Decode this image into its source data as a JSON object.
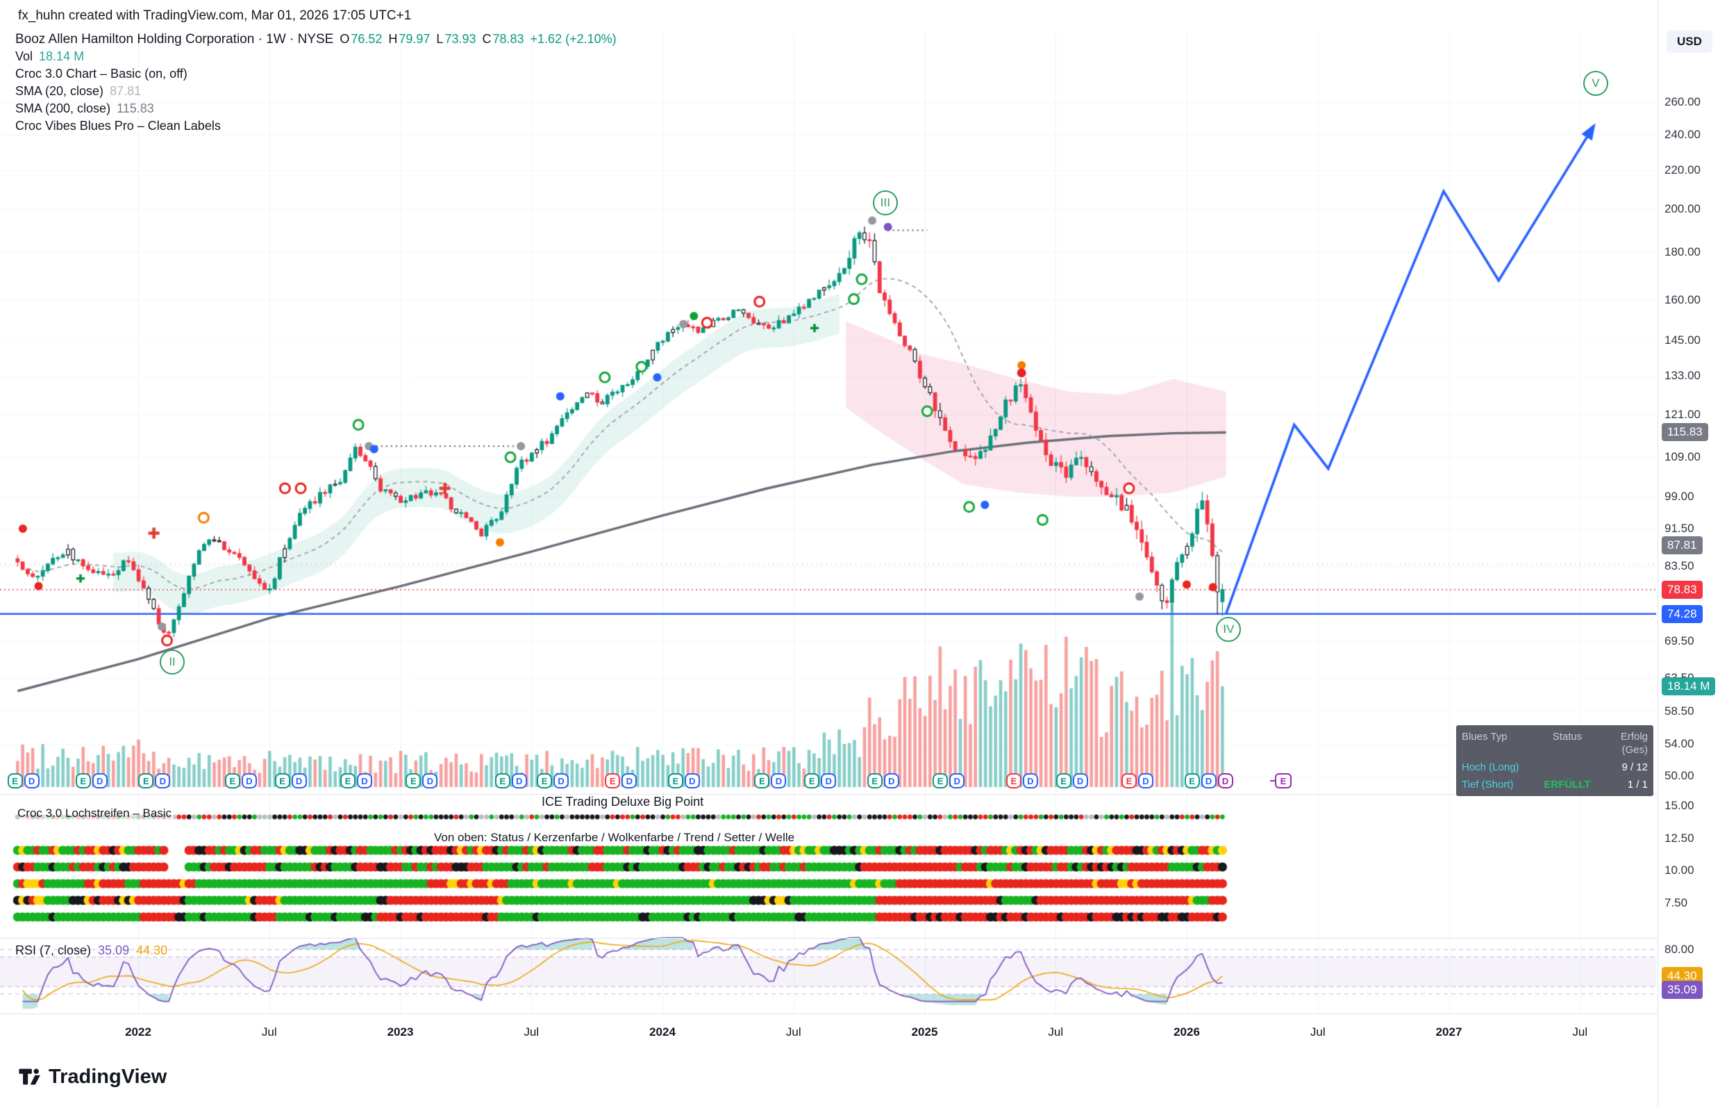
{
  "header": {
    "attribution": "fx_huhn created with TradingView.com, Mar 01, 2026 17:05 UTC+1"
  },
  "legend": {
    "title_line": "Booz Allen Hamilton Holding Corporation · 1W · NYSE",
    "ohlc": [
      {
        "label": "O",
        "value": "76.52"
      },
      {
        "label": "H",
        "value": "79.97"
      },
      {
        "label": "L",
        "value": "73.93"
      },
      {
        "label": "C",
        "value": "78.83"
      }
    ],
    "change": "+1.62 (+2.10%)",
    "vol_label": "Vol",
    "vol_value": "18.14 M",
    "indicators": [
      {
        "name": "Croc 3.0 Chart – Basic (on, off)",
        "value": ""
      },
      {
        "name": "SMA (20, close)",
        "value": "87.81"
      },
      {
        "name": "SMA (200, close)",
        "value": "115.83"
      },
      {
        "name": "Croc Vibes Blues Pro – Clean Labels",
        "value": ""
      }
    ]
  },
  "price_axis": {
    "currency": "USD",
    "ticks": [
      {
        "label": "260.00",
        "v": 260
      },
      {
        "label": "240.00",
        "v": 240
      },
      {
        "label": "220.00",
        "v": 220
      },
      {
        "label": "200.00",
        "v": 200
      },
      {
        "label": "180.00",
        "v": 180
      },
      {
        "label": "160.00",
        "v": 160
      },
      {
        "label": "145.00",
        "v": 145
      },
      {
        "label": "133.00",
        "v": 133
      },
      {
        "label": "121.00",
        "v": 121
      },
      {
        "label": "109.00",
        "v": 109
      },
      {
        "label": "99.00",
        "v": 99
      },
      {
        "label": "91.50",
        "v": 91.5
      },
      {
        "label": "83.50",
        "v": 83.5
      },
      {
        "label": "69.50",
        "v": 69.5
      },
      {
        "label": "63.50",
        "v": 63.5
      },
      {
        "label": "58.50",
        "v": 58.5
      },
      {
        "label": "54.00",
        "v": 54
      },
      {
        "label": "50.00",
        "v": 50
      }
    ],
    "badges": [
      {
        "label": "115.83",
        "v": 115.83,
        "bg": "#787b86"
      },
      {
        "label": "87.81",
        "v": 87.81,
        "bg": "#787b86"
      },
      {
        "label": "78.83",
        "v": 78.83,
        "bg": "#f23645"
      },
      {
        "label": "74.28",
        "v": 74.28,
        "bg": "#2962ff"
      },
      {
        "label": "18.14 M",
        "y": 988,
        "bg": "#26a69a"
      }
    ]
  },
  "sub_axis": {
    "ticks": [
      {
        "label": "15.00",
        "v": 15
      },
      {
        "label": "12.50",
        "v": 12.5
      },
      {
        "label": "10.00",
        "v": 10
      },
      {
        "label": "7.50",
        "v": 7.5
      }
    ]
  },
  "rsi_pane": {
    "legend_name": "RSI (7, close)",
    "value": "35.09",
    "ma_value": "44.30",
    "tick_label": "80.00",
    "badges": [
      {
        "label": "44.30",
        "rv": 44.3,
        "bg": "#eda50b",
        "dy": 0
      },
      {
        "label": "35.09",
        "rv": 35.09,
        "bg": "#7e57c2",
        "dy": 10
      }
    ]
  },
  "panes": {
    "ice_label": "ICE Trading Deluxe Big Point",
    "lochstreifen_label": "Croc 3.0 Lochstreifen – Basic",
    "von_oben_label": "Von oben: Status / Kerzenfarbe / Wolkenfarbe / Trend / Setter / Welle"
  },
  "time_axis": {
    "labels": [
      {
        "label": "2022",
        "t": 2022
      },
      {
        "label": "Jul",
        "t": 2022.5
      },
      {
        "label": "2023",
        "t": 2023
      },
      {
        "label": "Jul",
        "t": 2023.5
      },
      {
        "label": "2024",
        "t": 2024
      },
      {
        "label": "Jul",
        "t": 2024.5
      },
      {
        "label": "2025",
        "t": 2025
      },
      {
        "label": "Jul",
        "t": 2025.5
      },
      {
        "label": "2026",
        "t": 2026
      },
      {
        "label": "Jul",
        "t": 2026.5
      },
      {
        "label": "2027",
        "t": 2027
      },
      {
        "label": "Jul",
        "t": 2027.5
      }
    ]
  },
  "blues_table": {
    "headers": [
      "Blues Typ",
      "Status",
      "Erfolg (Ges)"
    ],
    "rows": [
      {
        "typ": "Hoch (Long)",
        "status": "",
        "erfolg": "9 / 12"
      },
      {
        "typ": "Tief (Short)",
        "status": "ERFÜLLT",
        "erfolg": "1 / 1"
      }
    ]
  },
  "watermark": {
    "brand": "TradingView"
  },
  "chart_data": {
    "type": "candlestick",
    "symbol": "Booz Allen Hamilton Holding Corporation",
    "exchange": "NYSE",
    "interval": "1W",
    "last_bar": {
      "open": 76.52,
      "high": 79.97,
      "low": 73.93,
      "close": 78.83,
      "change": "+1.62 (+2.10%)",
      "volume_label": "18.14 M"
    },
    "sma20_value": 87.81,
    "sma200_value": 115.83,
    "price_path": [
      [
        2021.54,
        85.0
      ],
      [
        2021.6,
        80.5
      ],
      [
        2021.66,
        84.0
      ],
      [
        2021.73,
        86.5
      ],
      [
        2021.8,
        83.0
      ],
      [
        2021.88,
        81.5
      ],
      [
        2021.96,
        84.5
      ],
      [
        2022.02,
        79.0
      ],
      [
        2022.08,
        72.5
      ],
      [
        2022.11,
        70.2
      ],
      [
        2022.16,
        76.0
      ],
      [
        2022.21,
        84.0
      ],
      [
        2022.27,
        89.5
      ],
      [
        2022.33,
        87.0
      ],
      [
        2022.4,
        84.5
      ],
      [
        2022.46,
        80.0
      ],
      [
        2022.5,
        78.5
      ],
      [
        2022.56,
        88.0
      ],
      [
        2022.63,
        96.0
      ],
      [
        2022.7,
        99.5
      ],
      [
        2022.77,
        103.0
      ],
      [
        2022.83,
        111.0
      ],
      [
        2022.87,
        108.0
      ],
      [
        2022.93,
        100.5
      ],
      [
        2023.0,
        97.5
      ],
      [
        2023.08,
        100.0
      ],
      [
        2023.16,
        99.0
      ],
      [
        2023.24,
        94.0
      ],
      [
        2023.31,
        90.5
      ],
      [
        2023.38,
        94.5
      ],
      [
        2023.44,
        106.0
      ],
      [
        2023.5,
        110.0
      ],
      [
        2023.56,
        113.5
      ],
      [
        2023.63,
        121.0
      ],
      [
        2023.7,
        127.5
      ],
      [
        2023.77,
        125.0
      ],
      [
        2023.84,
        129.5
      ],
      [
        2023.92,
        135.0
      ],
      [
        2024.0,
        146.0
      ],
      [
        2024.07,
        150.5
      ],
      [
        2024.14,
        148.0
      ],
      [
        2024.21,
        152.5
      ],
      [
        2024.28,
        156.0
      ],
      [
        2024.35,
        152.0
      ],
      [
        2024.42,
        149.5
      ],
      [
        2024.5,
        155.0
      ],
      [
        2024.57,
        161.0
      ],
      [
        2024.64,
        168.0
      ],
      [
        2024.7,
        175.0
      ],
      [
        2024.75,
        189.0
      ],
      [
        2024.79,
        186.0
      ],
      [
        2024.83,
        163.0
      ],
      [
        2024.88,
        152.0
      ],
      [
        2024.94,
        142.5
      ],
      [
        2025.0,
        130.0
      ],
      [
        2025.06,
        120.0
      ],
      [
        2025.12,
        111.5
      ],
      [
        2025.19,
        108.0
      ],
      [
        2025.25,
        114.0
      ],
      [
        2025.31,
        124.0
      ],
      [
        2025.36,
        131.0
      ],
      [
        2025.41,
        121.0
      ],
      [
        2025.47,
        109.0
      ],
      [
        2025.53,
        104.5
      ],
      [
        2025.59,
        108.5
      ],
      [
        2025.65,
        103.5
      ],
      [
        2025.71,
        99.5
      ],
      [
        2025.77,
        96.0
      ],
      [
        2025.83,
        87.5
      ],
      [
        2025.88,
        79.5
      ],
      [
        2025.92,
        75.5
      ],
      [
        2025.96,
        83.0
      ],
      [
        2026.0,
        87.0
      ],
      [
        2026.04,
        95.5
      ],
      [
        2026.07,
        98.0
      ],
      [
        2026.09,
        88.0
      ],
      [
        2026.11,
        79.5
      ],
      [
        2026.13,
        76.0
      ],
      [
        2026.145,
        78.83
      ]
    ],
    "sma200_path": [
      [
        2021.54,
        61.5
      ],
      [
        2022.0,
        66.5
      ],
      [
        2022.5,
        73.5
      ],
      [
        2023.0,
        79.5
      ],
      [
        2023.5,
        86.5
      ],
      [
        2024.0,
        94.5
      ],
      [
        2024.4,
        101
      ],
      [
        2024.8,
        107
      ],
      [
        2025.1,
        110.5
      ],
      [
        2025.4,
        113
      ],
      [
        2025.7,
        114.8
      ],
      [
        2025.95,
        115.6
      ],
      [
        2026.15,
        115.83
      ]
    ],
    "levels": {
      "blue_support": 74.28,
      "red_dotted_price": 78.83,
      "red_dotted_secondary": 83.9
    },
    "projection_points": [
      [
        2026.15,
        74.28
      ],
      [
        2026.41,
        118
      ],
      [
        2026.54,
        106
      ],
      [
        2026.98,
        209
      ],
      [
        2027.19,
        168
      ],
      [
        2027.54,
        242
      ]
    ],
    "waves": [
      {
        "label": "II",
        "t": 2022.13,
        "p": 66
      },
      {
        "label": "III",
        "t": 2024.85,
        "p": 203
      },
      {
        "label": "IV",
        "t": 2026.16,
        "p": 71.5
      },
      {
        "label": "V",
        "t": 2027.56,
        "p": 272
      }
    ],
    "dotted_connectors": [
      {
        "t1": 2022.89,
        "t2": 2023.46,
        "p": 112
      },
      {
        "t1": 2024.86,
        "t2": 2025.01,
        "p": 190
      }
    ],
    "markers": [
      {
        "t": 2021.56,
        "p": 91.5,
        "kind": "dot-red"
      },
      {
        "t": 2021.62,
        "p": 79.5,
        "kind": "dot-red"
      },
      {
        "t": 2021.78,
        "p": 81.0,
        "kind": "plus-green"
      },
      {
        "t": 2022.06,
        "p": 90.5,
        "kind": "cross-red"
      },
      {
        "t": 2022.09,
        "p": 72.0,
        "kind": "dot-gray"
      },
      {
        "t": 2022.11,
        "p": 69.6,
        "kind": "ring-red"
      },
      {
        "t": 2022.25,
        "p": 94.0,
        "kind": "ring-orange"
      },
      {
        "t": 2022.56,
        "p": 101.0,
        "kind": "ring-red"
      },
      {
        "t": 2022.62,
        "p": 101.0,
        "kind": "ring-red"
      },
      {
        "t": 2022.84,
        "p": 118.0,
        "kind": "ring-green"
      },
      {
        "t": 2022.88,
        "p": 112.0,
        "kind": "dot-gray"
      },
      {
        "t": 2022.9,
        "p": 111.2,
        "kind": "dot-blue"
      },
      {
        "t": 2023.17,
        "p": 101.0,
        "kind": "cross-red"
      },
      {
        "t": 2023.38,
        "p": 88.5,
        "kind": "dot-orange"
      },
      {
        "t": 2023.42,
        "p": 109.0,
        "kind": "ring-green"
      },
      {
        "t": 2023.46,
        "p": 112.0,
        "kind": "dot-gray"
      },
      {
        "t": 2023.61,
        "p": 126.5,
        "kind": "dot-blue"
      },
      {
        "t": 2023.78,
        "p": 132.5,
        "kind": "ring-green"
      },
      {
        "t": 2023.92,
        "p": 136.0,
        "kind": "ring-green"
      },
      {
        "t": 2023.98,
        "p": 132.5,
        "kind": "dot-blue"
      },
      {
        "t": 2024.08,
        "p": 151.0,
        "kind": "dot-gray"
      },
      {
        "t": 2024.12,
        "p": 154.0,
        "kind": "dot-green"
      },
      {
        "t": 2024.17,
        "p": 151.5,
        "kind": "ring-red"
      },
      {
        "t": 2024.37,
        "p": 159.5,
        "kind": "ring-red"
      },
      {
        "t": 2024.58,
        "p": 149.5,
        "kind": "plus-green"
      },
      {
        "t": 2024.73,
        "p": 160.5,
        "kind": "ring-green"
      },
      {
        "t": 2024.76,
        "p": 168.5,
        "kind": "ring-green"
      },
      {
        "t": 2024.8,
        "p": 194.5,
        "kind": "dot-gray"
      },
      {
        "t": 2024.86,
        "p": 191.5,
        "kind": "dot-purple"
      },
      {
        "t": 2025.01,
        "p": 122.0,
        "kind": "rings-green-double"
      },
      {
        "t": 2025.17,
        "p": 96.5,
        "kind": "ring-green"
      },
      {
        "t": 2025.23,
        "p": 97.0,
        "kind": "dot-blue"
      },
      {
        "t": 2025.37,
        "p": 134.0,
        "kind": "dot-berry"
      },
      {
        "t": 2025.45,
        "p": 93.5,
        "kind": "rings-green-double"
      },
      {
        "t": 2025.78,
        "p": 101.0,
        "kind": "ring-red"
      },
      {
        "t": 2025.82,
        "p": 77.5,
        "kind": "dot-gray"
      },
      {
        "t": 2026.0,
        "p": 79.8,
        "kind": "dot-red"
      },
      {
        "t": 2026.1,
        "p": 79.3,
        "kind": "dot-red"
      },
      {
        "t": 2026.14,
        "p": 72.0,
        "kind": "dot-gray-small"
      }
    ],
    "ed_badges": [
      {
        "t": 2021.53,
        "letters": [
          [
            "E",
            "g"
          ],
          [
            "D",
            "b"
          ]
        ]
      },
      {
        "t": 2021.79,
        "letters": [
          [
            "E",
            "g"
          ],
          [
            "D",
            "b"
          ]
        ]
      },
      {
        "t": 2022.03,
        "letters": [
          [
            "E",
            "g"
          ],
          [
            "D",
            "b"
          ]
        ]
      },
      {
        "t": 2022.36,
        "letters": [
          [
            "E",
            "g"
          ],
          [
            "D",
            "b"
          ]
        ]
      },
      {
        "t": 2022.55,
        "letters": [
          [
            "E",
            "g"
          ],
          [
            "D",
            "b"
          ]
        ]
      },
      {
        "t": 2022.8,
        "letters": [
          [
            "E",
            "g"
          ],
          [
            "D",
            "b"
          ]
        ]
      },
      {
        "t": 2023.05,
        "letters": [
          [
            "E",
            "g"
          ],
          [
            "D",
            "b"
          ]
        ]
      },
      {
        "t": 2023.39,
        "letters": [
          [
            "E",
            "g"
          ],
          [
            "D",
            "b"
          ]
        ]
      },
      {
        "t": 2023.55,
        "letters": [
          [
            "E",
            "g"
          ],
          [
            "D",
            "b"
          ]
        ]
      },
      {
        "t": 2023.81,
        "letters": [
          [
            "E",
            "r"
          ],
          [
            "D",
            "b"
          ]
        ]
      },
      {
        "t": 2024.05,
        "letters": [
          [
            "E",
            "g"
          ],
          [
            "D",
            "b"
          ]
        ]
      },
      {
        "t": 2024.38,
        "letters": [
          [
            "E",
            "g"
          ],
          [
            "D",
            "b"
          ]
        ]
      },
      {
        "t": 2024.57,
        "letters": [
          [
            "E",
            "g"
          ],
          [
            "D",
            "b"
          ]
        ]
      },
      {
        "t": 2024.81,
        "letters": [
          [
            "E",
            "g"
          ],
          [
            "D",
            "b"
          ]
        ]
      },
      {
        "t": 2025.06,
        "letters": [
          [
            "E",
            "g"
          ],
          [
            "D",
            "b"
          ]
        ]
      },
      {
        "t": 2025.34,
        "letters": [
          [
            "E",
            "r"
          ],
          [
            "D",
            "b"
          ]
        ]
      },
      {
        "t": 2025.53,
        "letters": [
          [
            "E",
            "g"
          ],
          [
            "D",
            "b"
          ]
        ]
      },
      {
        "t": 2025.78,
        "letters": [
          [
            "E",
            "r"
          ],
          [
            "D",
            "b"
          ]
        ]
      },
      {
        "t": 2026.02,
        "letters": [
          [
            "E",
            "g"
          ],
          [
            "D",
            "b"
          ],
          [
            "D",
            "p"
          ]
        ]
      }
    ],
    "flag_badge_letter": "E",
    "volume_millions_last": 18.14,
    "volume_spike": {
      "t": 2025.94,
      "millions": 33
    },
    "rsi": {
      "period": 7,
      "value": 35.09,
      "ma": 44.3,
      "levels": [
        80,
        70,
        30,
        20
      ]
    },
    "ylim_price": [
      50,
      280
    ],
    "x_range": [
      2021.54,
      2027.7
    ],
    "scale": "log"
  }
}
